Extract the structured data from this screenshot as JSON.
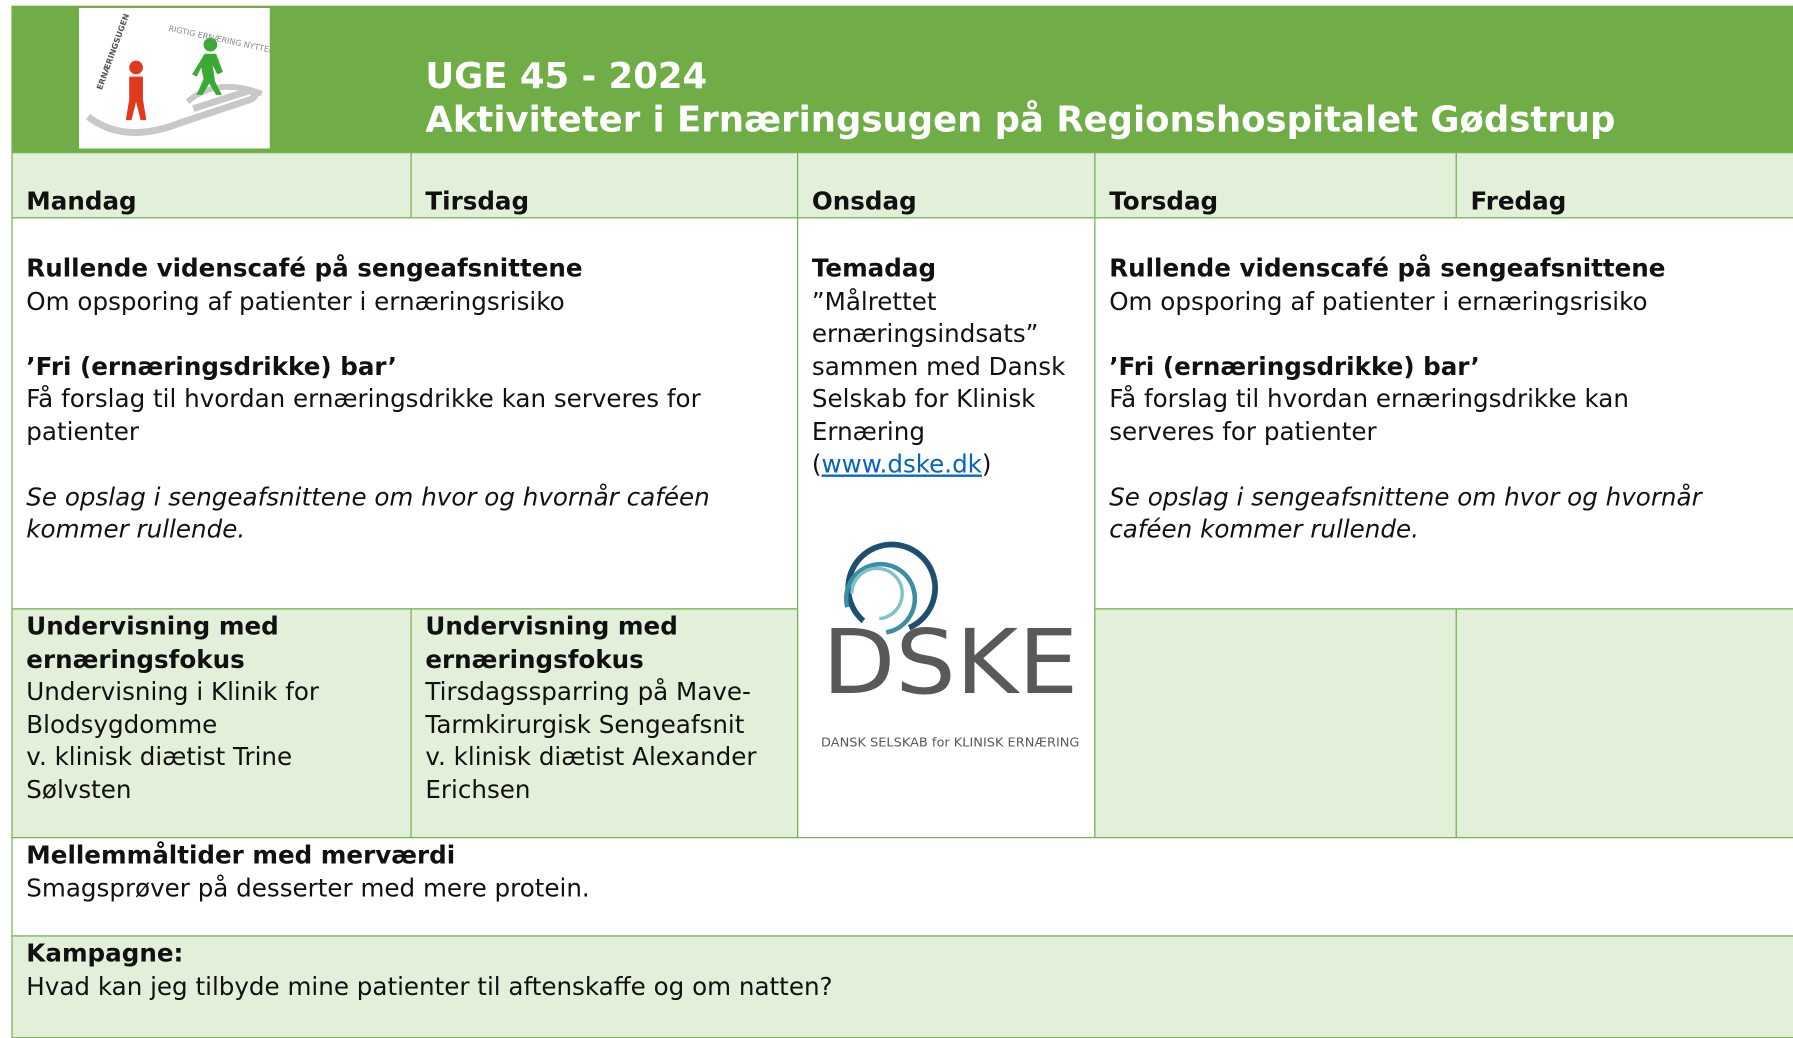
{
  "header": {
    "logo_text": "ERNÆRINGSUGEN",
    "logo_tagline": "RIGTIG ERNÆRING NYTTER",
    "title_line1": "UGE 45 - 2024",
    "title_line2": "Aktiviteter i Ernæringsugen på Regionshospitalet Gødstrup"
  },
  "days": [
    "Mandag",
    "Tirsdag",
    "Onsdag",
    "Torsdag",
    "Fredag"
  ],
  "mon_tue": {
    "blocks": [
      {
        "heading": "Rullende videnscafé på sengeafsnittene",
        "text": "Om opsporing af patienter i ernæringsrisiko"
      },
      {
        "heading": "’Fri (ernæringsdrikke) bar’",
        "text": "Få forslag til hvordan ernæringsdrikke kan serveres for patienter"
      }
    ],
    "note": "Se opslag i sengeafsnittene om hvor og hvornår caféen kommer rullende."
  },
  "wednesday": {
    "heading": "Temadag",
    "text": "”Målrettet ernæringsindsats” sammen med Dansk Selskab for Klinisk Ernæring (",
    "link": "www.dske.dk",
    "text_after": ")",
    "logo": {
      "name": "DSKE",
      "subtitle": "DANSK SELSKAB for KLINISK ERNÆRING"
    }
  },
  "thu_fri": {
    "blocks": [
      {
        "heading": "Rullende videnscafé på sengeafsnittene",
        "text": "Om opsporing af patienter i ernæringsrisiko"
      },
      {
        "heading": "’Fri (ernæringsdrikke) bar’",
        "text": "Få forslag til hvordan ernæringsdrikke kan serveres for patienter"
      }
    ],
    "note": "Se opslag i sengeafsnittene om hvor og hvornår caféen kommer rullende."
  },
  "teaching": [
    {
      "heading": "Undervisning med ernæringsfokus",
      "lines": [
        "Undervisning i Klinik for Blodsygdomme",
        "v. klinisk diætist Trine Sølvsten"
      ]
    },
    {
      "heading": "Undervisning med ernæringsfokus",
      "lines": [
        "Tirsdagssparring på Mave-Tarmkirurgisk Sengeafsnit",
        "v. klinisk diætist Alexander Erichsen"
      ]
    }
  ],
  "snacks": {
    "heading": "Mellemmåltider med merværdi",
    "text": "Smagsprøver på desserter med mere protein."
  },
  "campaign": {
    "heading": "Kampagne:",
    "text": "Hvad kan jeg tilbyde mine patienter til aftenskaffe og om natten?"
  }
}
